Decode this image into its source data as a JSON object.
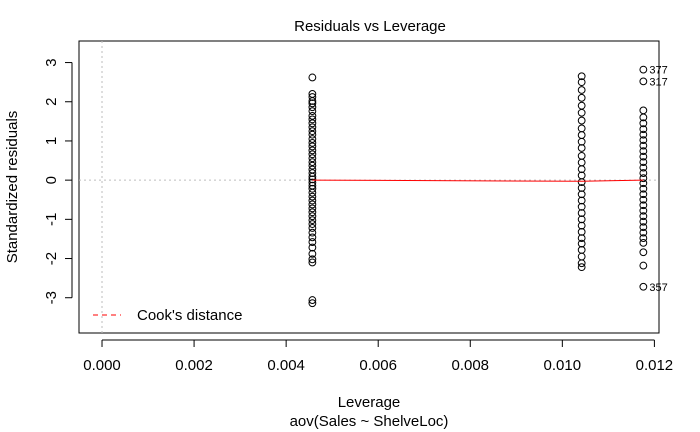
{
  "chart_data": {
    "type": "scatter",
    "title": "Residuals vs Leverage",
    "xlabel": "Leverage",
    "xlabel_sub": "aov(Sales ~ ShelveLoc)",
    "ylabel": "Standardized residuals",
    "xlim": [
      -0.0005,
      0.0121
    ],
    "ylim": [
      -3.9,
      3.55
    ],
    "xticks": [
      "0.000",
      "0.002",
      "0.004",
      "0.006",
      "0.008",
      "0.010",
      "0.012"
    ],
    "xtick_values": [
      0,
      0.002,
      0.004,
      0.006,
      0.008,
      0.01,
      0.012
    ],
    "yticks": [
      "-3",
      "-2",
      "-1",
      "0",
      "1",
      "2",
      "3"
    ],
    "ytick_values": [
      -3,
      -2,
      -1,
      0,
      1,
      2,
      3
    ],
    "reference_lines": {
      "x": 0,
      "y": 0,
      "style": "dotted",
      "color": "#bdbdbd"
    },
    "point_style": {
      "shape": "open-circle",
      "color": "#000000"
    },
    "groups": [
      {
        "leverage": 0.00457,
        "residuals": [
          2.62,
          2.2,
          2.12,
          2.02,
          1.96,
          1.86,
          1.76,
          1.64,
          1.55,
          1.45,
          1.35,
          1.25,
          1.16,
          1.05,
          0.95,
          0.86,
          0.76,
          0.66,
          0.56,
          0.46,
          0.37,
          0.27,
          0.18,
          0.09,
          0.02,
          -0.06,
          -0.14,
          -0.22,
          -0.32,
          -0.42,
          -0.52,
          -0.62,
          -0.72,
          -0.82,
          -0.92,
          -1.02,
          -1.12,
          -1.22,
          -1.34,
          -1.46,
          -1.58,
          -1.72,
          -1.88,
          -2.02,
          -2.1,
          -3.06,
          -3.14
        ]
      },
      {
        "leverage": 0.01042,
        "residuals": [
          2.65,
          2.5,
          2.3,
          2.1,
          1.9,
          1.72,
          1.52,
          1.32,
          1.15,
          0.98,
          0.82,
          0.62,
          0.45,
          0.28,
          0.12,
          -0.05,
          -0.2,
          -0.36,
          -0.52,
          -0.68,
          -0.84,
          -1.0,
          -1.16,
          -1.32,
          -1.48,
          -1.62,
          -1.78,
          -1.95,
          -2.12,
          -2.22
        ]
      },
      {
        "leverage": 0.01176,
        "residuals": [
          2.82,
          2.52,
          1.78,
          1.6,
          1.45,
          1.3,
          1.16,
          1.02,
          0.88,
          0.74,
          0.6,
          0.46,
          0.32,
          0.18,
          0.05,
          -0.08,
          -0.22,
          -0.36,
          -0.5,
          -0.64,
          -0.78,
          -0.92,
          -1.06,
          -1.2,
          -1.34,
          -1.48,
          -1.6,
          -1.84,
          -2.18,
          -2.72
        ]
      }
    ],
    "labeled_points": [
      {
        "label": "377",
        "leverage": 0.01176,
        "residual": 2.82
      },
      {
        "label": "317",
        "leverage": 0.01176,
        "residual": 2.52
      },
      {
        "label": "357",
        "leverage": 0.01176,
        "residual": -2.72
      }
    ],
    "smooth_line": {
      "color": "#ff0000",
      "points": [
        [
          0.00457,
          0.0
        ],
        [
          0.01042,
          -0.03
        ],
        [
          0.01176,
          0.0
        ]
      ]
    },
    "legend": {
      "position": "bottom-left",
      "entries": [
        {
          "label": "Cook's distance",
          "style": "dashed",
          "color": "#ff0000"
        }
      ]
    }
  }
}
